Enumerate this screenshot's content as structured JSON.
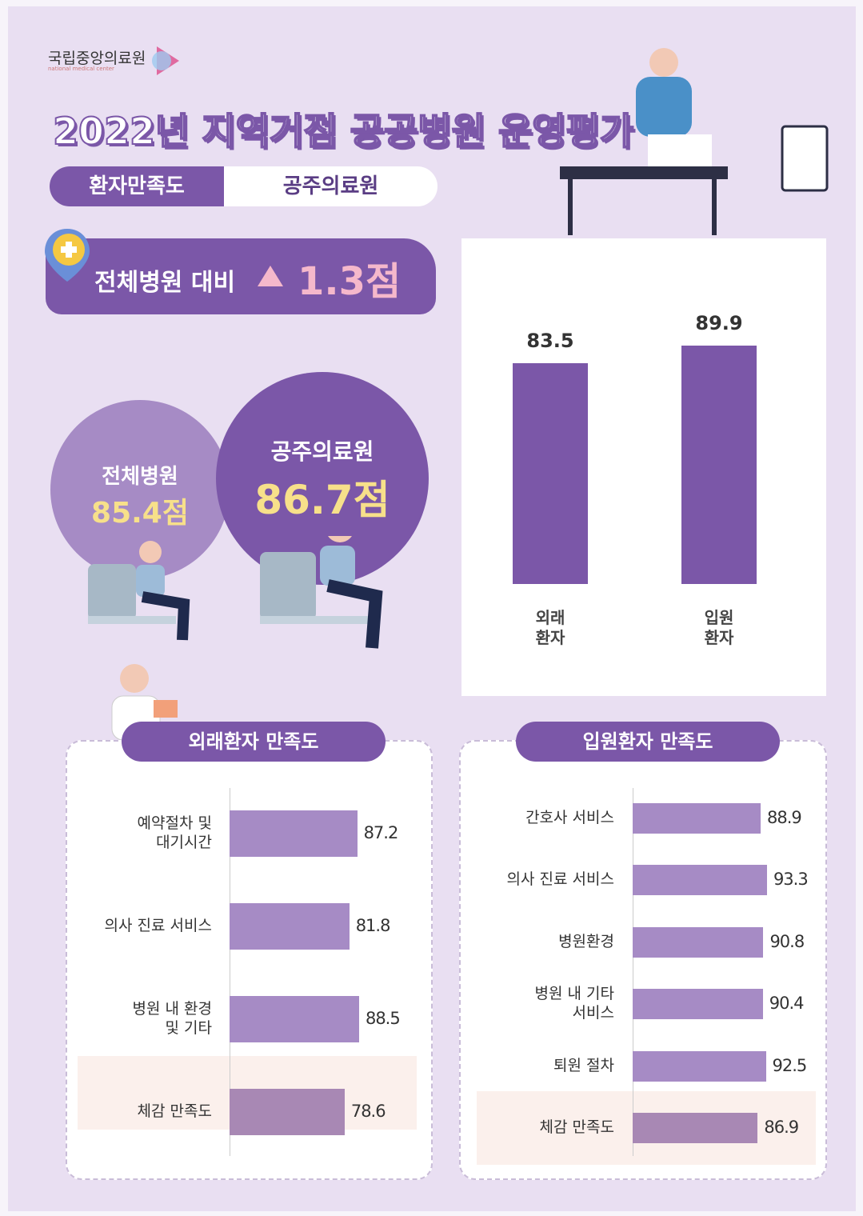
{
  "logo": {
    "name": "국립중앙의료원",
    "subtitle": "national medical center"
  },
  "title": "2022년 지역거점 공공병원 운영평가",
  "tabs": [
    "환자만족도",
    "공주의료원"
  ],
  "badge": {
    "label": "전체병원 대비",
    "delta": "1.3점"
  },
  "circles": [
    {
      "name": "전체병원",
      "score": "85.4점"
    },
    {
      "name": "공주의료원",
      "score": "86.7점"
    }
  ],
  "chart_data": [
    {
      "type": "bar",
      "categories": [
        "외래\n환자",
        "입원\n환자"
      ],
      "values": [
        83.5,
        89.9
      ],
      "color": "#7b57a8"
    },
    {
      "type": "hbar",
      "title": "외래환자 만족도",
      "categories": [
        "예약절차 및\n대기시간",
        "의사 진료 서비스",
        "병원 내 환경\n및 기타",
        "체감 만족도"
      ],
      "values": [
        87.2,
        81.8,
        88.5,
        78.6
      ],
      "colors": [
        "#a68bc5",
        "#a68bc5",
        "#a68bc5",
        "#a888b4"
      ]
    },
    {
      "type": "hbar",
      "title": "입원환자 만족도",
      "categories": [
        "간호사 서비스",
        "의사 진료 서비스",
        "병원환경",
        "병원 내 기타\n서비스",
        "퇴원 절차",
        "체감 만족도"
      ],
      "values": [
        88.9,
        93.3,
        90.8,
        90.4,
        92.5,
        86.9
      ],
      "colors": [
        "#a68bc5",
        "#a68bc5",
        "#a68bc5",
        "#a68bc5",
        "#a68bc5",
        "#a888b4"
      ]
    }
  ]
}
